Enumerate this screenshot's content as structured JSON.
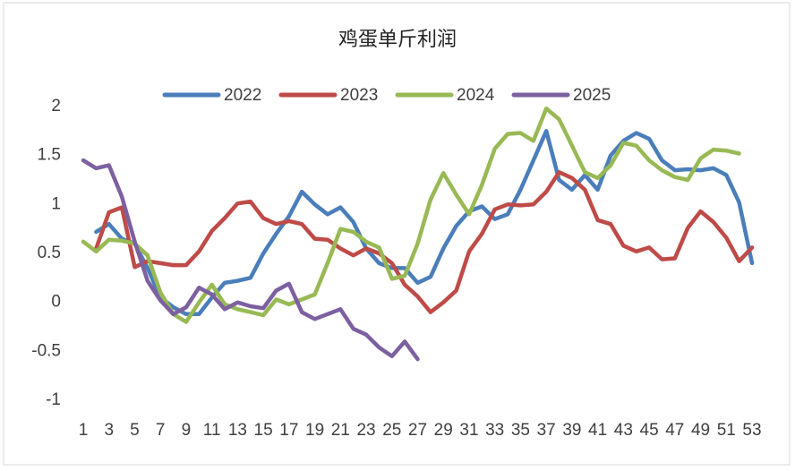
{
  "chart_data": {
    "type": "line",
    "title": "鸡蛋单斤利润",
    "categories": [
      1,
      null,
      3,
      null,
      5,
      null,
      7,
      null,
      9,
      null,
      11,
      null,
      13,
      null,
      15,
      null,
      17,
      null,
      19,
      null,
      21,
      null,
      23,
      null,
      25,
      null,
      27,
      null,
      29,
      null,
      31,
      null,
      33,
      null,
      35,
      null,
      37,
      null,
      39,
      null,
      41,
      null,
      43,
      null,
      45,
      null,
      47,
      null,
      49,
      null,
      51,
      null,
      53
    ],
    "ylim": [
      -1,
      2
    ],
    "yticks": [
      2,
      1.5,
      1,
      0.5,
      0,
      -0.5,
      -1
    ],
    "grid": false,
    "legend": "top",
    "series": [
      {
        "name": "2022",
        "color": "#4a7ebb",
        "values": [
          null,
          0.72,
          0.8,
          0.65,
          0.6,
          0.35,
          0.05,
          -0.05,
          -0.12,
          -0.12,
          0.05,
          0.2,
          0.22,
          0.25,
          0.5,
          0.7,
          0.88,
          1.13,
          1.0,
          0.9,
          0.97,
          0.82,
          0.55,
          0.4,
          0.35,
          0.35,
          0.2,
          0.26,
          0.55,
          0.78,
          0.93,
          0.98,
          0.85,
          0.9,
          1.15,
          1.45,
          1.75,
          1.25,
          1.15,
          1.3,
          1.15,
          1.5,
          1.65,
          1.73,
          1.67,
          1.45,
          1.35,
          1.36,
          1.35,
          1.37,
          1.3,
          1.02,
          0.4
        ]
      },
      {
        "name": "2023",
        "color": "#be4b48",
        "values": [
          null,
          0.55,
          0.92,
          0.97,
          0.36,
          0.42,
          0.4,
          0.38,
          0.38,
          0.52,
          0.73,
          0.86,
          1.01,
          1.03,
          0.86,
          0.8,
          0.83,
          0.8,
          0.65,
          0.64,
          0.55,
          0.48,
          0.55,
          0.5,
          0.4,
          0.18,
          0.06,
          -0.1,
          0.0,
          0.12,
          0.52,
          0.7,
          0.95,
          1.0,
          0.99,
          1.0,
          1.13,
          1.33,
          1.27,
          1.15,
          0.84,
          0.8,
          0.58,
          0.52,
          0.56,
          0.44,
          0.45,
          0.76,
          0.93,
          0.82,
          0.66,
          0.42,
          0.56
        ]
      },
      {
        "name": "2024",
        "color": "#98b954",
        "values": [
          0.62,
          0.52,
          0.64,
          0.63,
          0.6,
          0.48,
          0.1,
          -0.12,
          -0.2,
          0.0,
          0.18,
          -0.02,
          -0.07,
          -0.1,
          -0.13,
          0.03,
          -0.02,
          0.03,
          0.08,
          0.4,
          0.75,
          0.72,
          0.62,
          0.56,
          0.24,
          0.27,
          0.6,
          1.05,
          1.32,
          1.1,
          0.9,
          1.2,
          1.57,
          1.72,
          1.73,
          1.65,
          1.98,
          1.87,
          1.6,
          1.33,
          1.27,
          1.4,
          1.63,
          1.6,
          1.45,
          1.35,
          1.28,
          1.25,
          1.47,
          1.56,
          1.55,
          1.52,
          null
        ]
      },
      {
        "name": "2025",
        "color": "#7d60a0",
        "values": [
          1.45,
          1.37,
          1.4,
          1.08,
          0.62,
          0.22,
          0.02,
          -0.12,
          -0.05,
          0.15,
          0.08,
          -0.07,
          0.0,
          -0.04,
          -0.06,
          0.12,
          0.19,
          -0.1,
          -0.17,
          -0.12,
          -0.07,
          -0.27,
          -0.33,
          -0.46,
          -0.55,
          -0.4,
          -0.58,
          null,
          null,
          null,
          null,
          null,
          null,
          null,
          null,
          null,
          null,
          null,
          null,
          null,
          null,
          null,
          null,
          null,
          null,
          null,
          null,
          null,
          null,
          null,
          null,
          null,
          null
        ]
      }
    ]
  }
}
